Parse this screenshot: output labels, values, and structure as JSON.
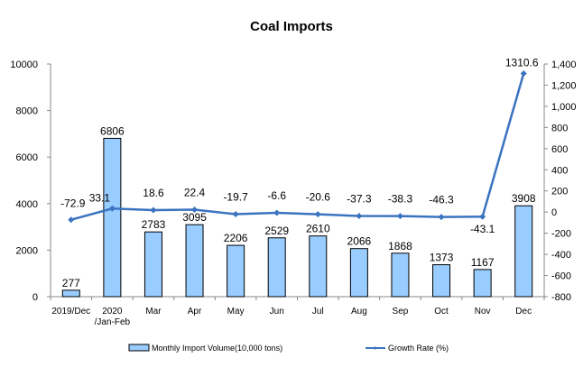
{
  "chart_data": {
    "type": "bar+line",
    "title": "Coal Imports",
    "categories": [
      "2019/Dec",
      "2020\n/Jan-Feb",
      "Mar",
      "Apr",
      "May",
      "Jun",
      "Jul",
      "Aug",
      "Sep",
      "Oct",
      "Nov",
      "Dec"
    ],
    "series": [
      {
        "name": "Monthly Import Volume(10,000 tons)",
        "type": "bar",
        "axis": "left",
        "color": "#99CCFF",
        "values": [
          277,
          6806,
          2783,
          3095,
          2206,
          2529,
          2610,
          2066,
          1868,
          1373,
          1167,
          3908
        ]
      },
      {
        "name": "Growth Rate (%)",
        "type": "line",
        "axis": "right",
        "color": "#3A73C0",
        "values": [
          -72.9,
          33.1,
          18.6,
          22.4,
          -19.7,
          -6.6,
          -20.6,
          -37.3,
          -38.3,
          -46.3,
          -43.1,
          1310.6
        ]
      }
    ],
    "y_left": {
      "range": [
        0,
        10000
      ],
      "ticks": [
        "0",
        "2000",
        "4000",
        "6000",
        "8000",
        "10000"
      ]
    },
    "y_right": {
      "range": [
        -800,
        1400
      ],
      "ticks": [
        "-800",
        "-600",
        "-400",
        "-200",
        "0",
        "200",
        "400",
        "600",
        "800",
        "1,000",
        "1,200",
        "1,400"
      ]
    },
    "grid": false,
    "legend": "bottom"
  }
}
